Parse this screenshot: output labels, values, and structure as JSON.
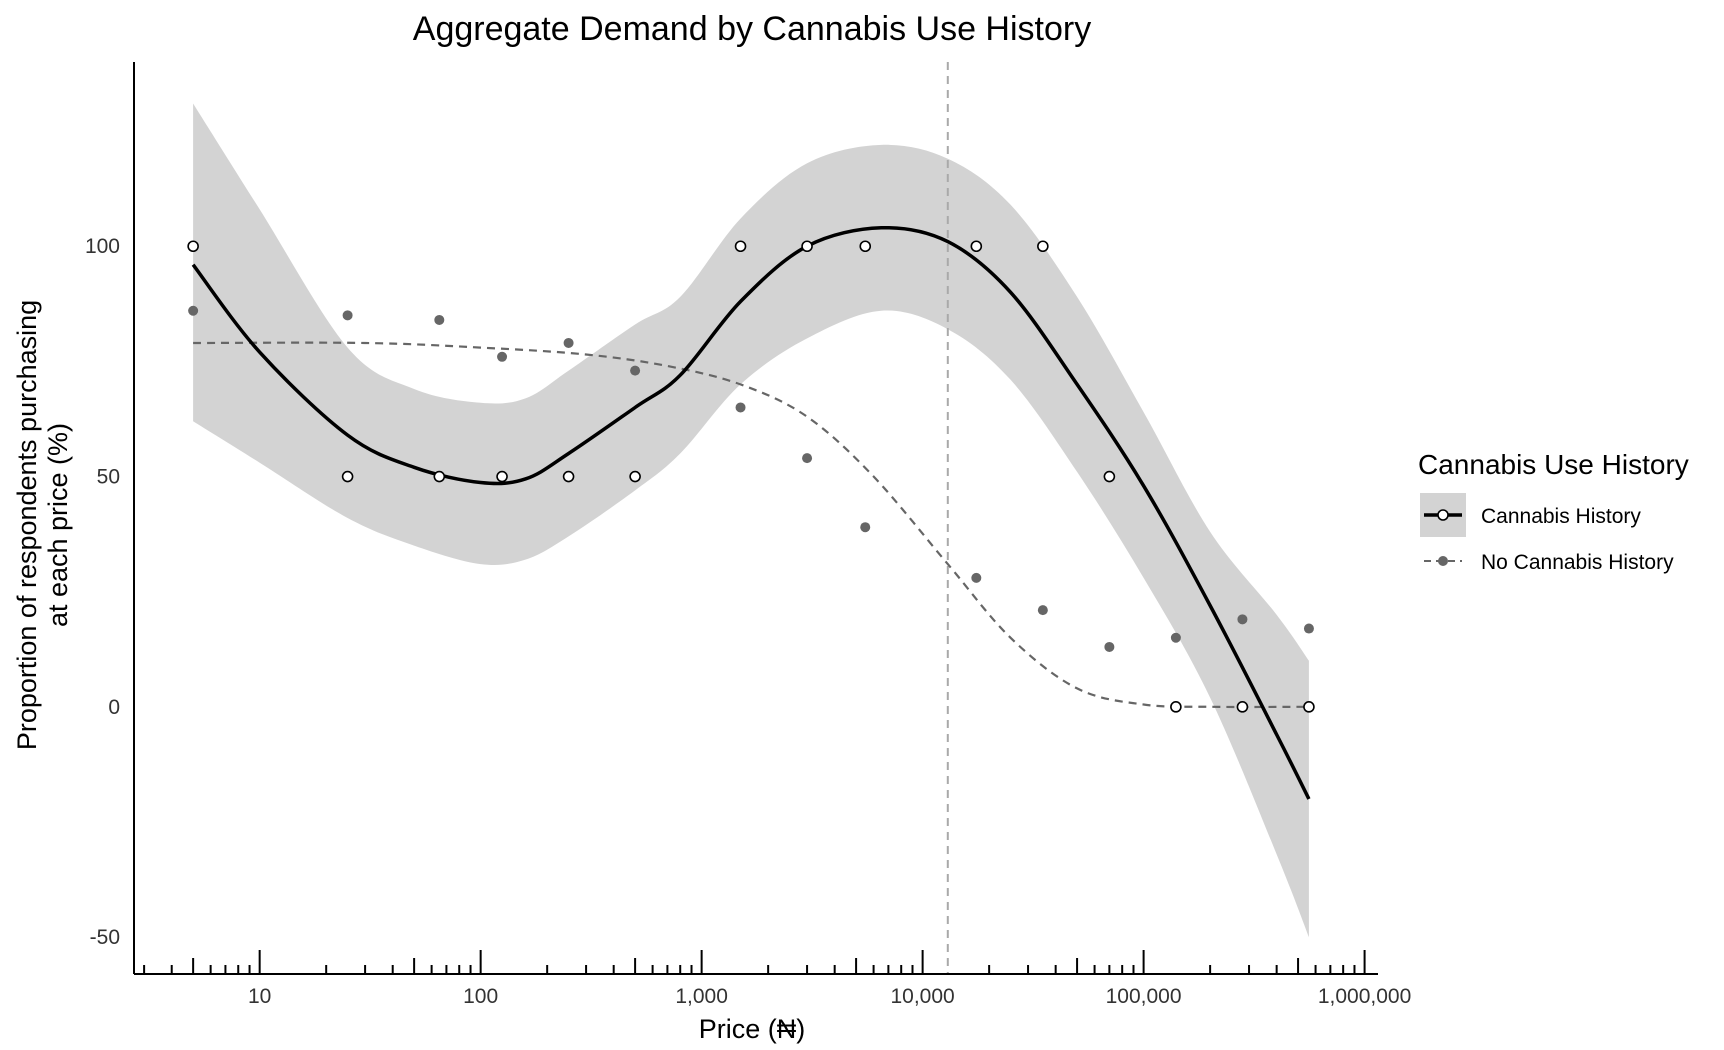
{
  "chart_data": {
    "type": "scatter",
    "title": "Aggregate Demand by Cannabis Use History",
    "xlabel": "Price (₦)",
    "ylabel_lines": [
      "Proportion of respondents purchasing",
      "at each price (%)"
    ],
    "x_scale": "log10",
    "xlim": [
      2.7,
      1150000
    ],
    "ylim": [
      -58,
      140
    ],
    "x_ticks": [
      10,
      100,
      1000,
      10000,
      100000,
      1000000
    ],
    "x_tick_labels": [
      "10",
      "100",
      "1,000",
      "10,000",
      "100,000",
      "1,000,000"
    ],
    "y_ticks": [
      -50,
      0,
      50,
      100
    ],
    "y_tick_labels": [
      "-50",
      "0",
      "50",
      "100"
    ],
    "reference_line_x": 13000,
    "grid": false,
    "legend": {
      "title": "Cannabis Use History",
      "position": "right",
      "entries": [
        "Cannabis History",
        "No Cannabis History"
      ]
    },
    "series": [
      {
        "name": "Cannabis History",
        "style": "solid",
        "marker": "open-circle",
        "color": "#000000",
        "points": [
          {
            "x": 5,
            "y": 100
          },
          {
            "x": 25,
            "y": 50
          },
          {
            "x": 65,
            "y": 50
          },
          {
            "x": 125,
            "y": 50
          },
          {
            "x": 250,
            "y": 50
          },
          {
            "x": 500,
            "y": 50
          },
          {
            "x": 1500,
            "y": 100
          },
          {
            "x": 3000,
            "y": 100
          },
          {
            "x": 5500,
            "y": 100
          },
          {
            "x": 17500,
            "y": 100
          },
          {
            "x": 35000,
            "y": 100
          },
          {
            "x": 70000,
            "y": 50
          },
          {
            "x": 140000,
            "y": 0
          },
          {
            "x": 280000,
            "y": 0
          },
          {
            "x": 560000,
            "y": 0
          }
        ],
        "smooth": [
          {
            "x": 5,
            "y": 96
          },
          {
            "x": 10,
            "y": 77
          },
          {
            "x": 25,
            "y": 59
          },
          {
            "x": 50,
            "y": 52
          },
          {
            "x": 100,
            "y": 48.7
          },
          {
            "x": 160,
            "y": 49.5
          },
          {
            "x": 250,
            "y": 55
          },
          {
            "x": 500,
            "y": 65
          },
          {
            "x": 800,
            "y": 72
          },
          {
            "x": 1500,
            "y": 88
          },
          {
            "x": 3000,
            "y": 100
          },
          {
            "x": 6500,
            "y": 104
          },
          {
            "x": 13000,
            "y": 101
          },
          {
            "x": 25000,
            "y": 90
          },
          {
            "x": 50000,
            "y": 70
          },
          {
            "x": 100000,
            "y": 48
          },
          {
            "x": 200000,
            "y": 22
          },
          {
            "x": 400000,
            "y": -6
          },
          {
            "x": 560000,
            "y": -20
          }
        ],
        "ci_upper": [
          {
            "x": 5,
            "y": 131
          },
          {
            "x": 10,
            "y": 108
          },
          {
            "x": 25,
            "y": 78
          },
          {
            "x": 50,
            "y": 69
          },
          {
            "x": 100,
            "y": 66
          },
          {
            "x": 160,
            "y": 67
          },
          {
            "x": 250,
            "y": 73
          },
          {
            "x": 500,
            "y": 83
          },
          {
            "x": 800,
            "y": 89
          },
          {
            "x": 1500,
            "y": 106
          },
          {
            "x": 3000,
            "y": 118
          },
          {
            "x": 6500,
            "y": 122
          },
          {
            "x": 13000,
            "y": 119
          },
          {
            "x": 25000,
            "y": 109
          },
          {
            "x": 50000,
            "y": 89
          },
          {
            "x": 100000,
            "y": 64
          },
          {
            "x": 200000,
            "y": 38
          },
          {
            "x": 400000,
            "y": 20
          },
          {
            "x": 560000,
            "y": 10
          }
        ],
        "ci_lower": [
          {
            "x": 5,
            "y": 62
          },
          {
            "x": 10,
            "y": 53
          },
          {
            "x": 25,
            "y": 41
          },
          {
            "x": 50,
            "y": 35
          },
          {
            "x": 100,
            "y": 31
          },
          {
            "x": 160,
            "y": 32
          },
          {
            "x": 250,
            "y": 37
          },
          {
            "x": 500,
            "y": 47
          },
          {
            "x": 800,
            "y": 55
          },
          {
            "x": 1500,
            "y": 70
          },
          {
            "x": 3000,
            "y": 80
          },
          {
            "x": 6500,
            "y": 86
          },
          {
            "x": 13000,
            "y": 82
          },
          {
            "x": 25000,
            "y": 71
          },
          {
            "x": 50000,
            "y": 51
          },
          {
            "x": 100000,
            "y": 28
          },
          {
            "x": 200000,
            "y": 2
          },
          {
            "x": 400000,
            "y": -32
          },
          {
            "x": 560000,
            "y": -50
          }
        ]
      },
      {
        "name": "No Cannabis History",
        "style": "dashed",
        "marker": "filled-circle",
        "color": "#666666",
        "points": [
          {
            "x": 5,
            "y": 86
          },
          {
            "x": 25,
            "y": 85
          },
          {
            "x": 65,
            "y": 84
          },
          {
            "x": 125,
            "y": 76
          },
          {
            "x": 250,
            "y": 79
          },
          {
            "x": 500,
            "y": 73
          },
          {
            "x": 1500,
            "y": 65
          },
          {
            "x": 3000,
            "y": 54
          },
          {
            "x": 5500,
            "y": 39
          },
          {
            "x": 17500,
            "y": 28
          },
          {
            "x": 35000,
            "y": 21
          },
          {
            "x": 70000,
            "y": 13
          },
          {
            "x": 140000,
            "y": 15
          },
          {
            "x": 280000,
            "y": 19
          },
          {
            "x": 560000,
            "y": 17
          }
        ],
        "smooth": [
          {
            "x": 5,
            "y": 79
          },
          {
            "x": 30,
            "y": 79
          },
          {
            "x": 100,
            "y": 78
          },
          {
            "x": 300,
            "y": 76.5
          },
          {
            "x": 700,
            "y": 74
          },
          {
            "x": 1500,
            "y": 70
          },
          {
            "x": 3000,
            "y": 63
          },
          {
            "x": 6000,
            "y": 50
          },
          {
            "x": 13000,
            "y": 31
          },
          {
            "x": 25000,
            "y": 15
          },
          {
            "x": 50000,
            "y": 4
          },
          {
            "x": 100000,
            "y": 0.5
          },
          {
            "x": 200000,
            "y": 0
          },
          {
            "x": 560000,
            "y": 0
          }
        ]
      }
    ]
  }
}
